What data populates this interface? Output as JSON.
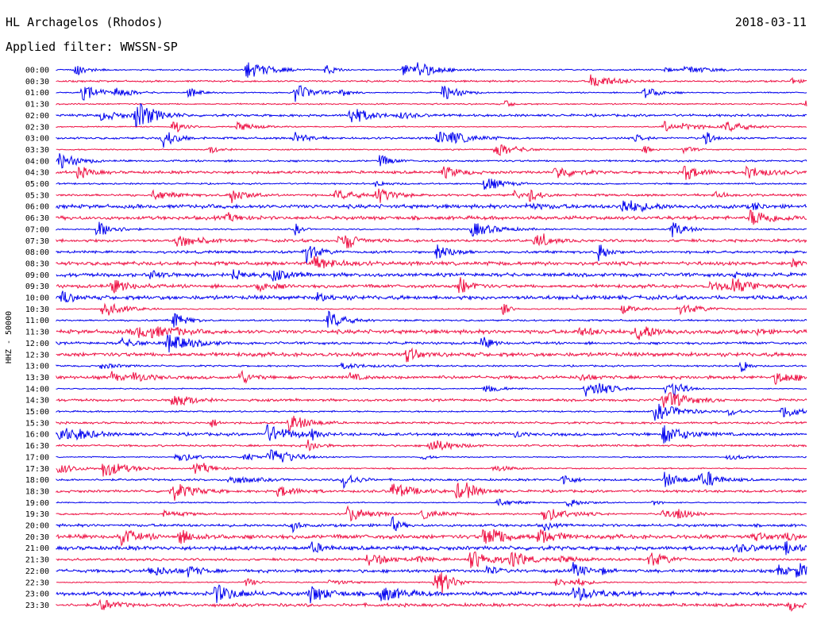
{
  "header": {
    "station": "HL Archagelos (Rhodos)",
    "date": "2018-03-11",
    "filter": "Applied filter: WWSSN-SP"
  },
  "colors": {
    "blue": "#0000ee",
    "red": "#ee1144"
  },
  "chart_data": {
    "type": "line",
    "title": "HL Archagelos (Rhodos)",
    "ylabel": "HHZ - 50000",
    "y_tick_labels": [
      "00:00",
      "00:30",
      "01:00",
      "01:30",
      "02:00",
      "02:30",
      "03:00",
      "03:30",
      "04:00",
      "04:30",
      "05:00",
      "05:30",
      "06:00",
      "06:30",
      "07:00",
      "07:30",
      "08:00",
      "08:30",
      "09:00",
      "09:30",
      "10:00",
      "10:30",
      "11:00",
      "11:30",
      "12:00",
      "12:30",
      "13:00",
      "13:30",
      "14:00",
      "14:30",
      "15:00",
      "15:30",
      "16:00",
      "16:30",
      "17:00",
      "17:30",
      "18:00",
      "18:30",
      "19:00",
      "19:30",
      "20:00",
      "20:30",
      "21:00",
      "21:30",
      "22:00",
      "22:30",
      "23:00",
      "23:30"
    ],
    "series_colors": [
      "blue",
      "red"
    ],
    "color_rule": "alternating per 30-minute trace, starting with blue at 00:00",
    "grid": false
  }
}
